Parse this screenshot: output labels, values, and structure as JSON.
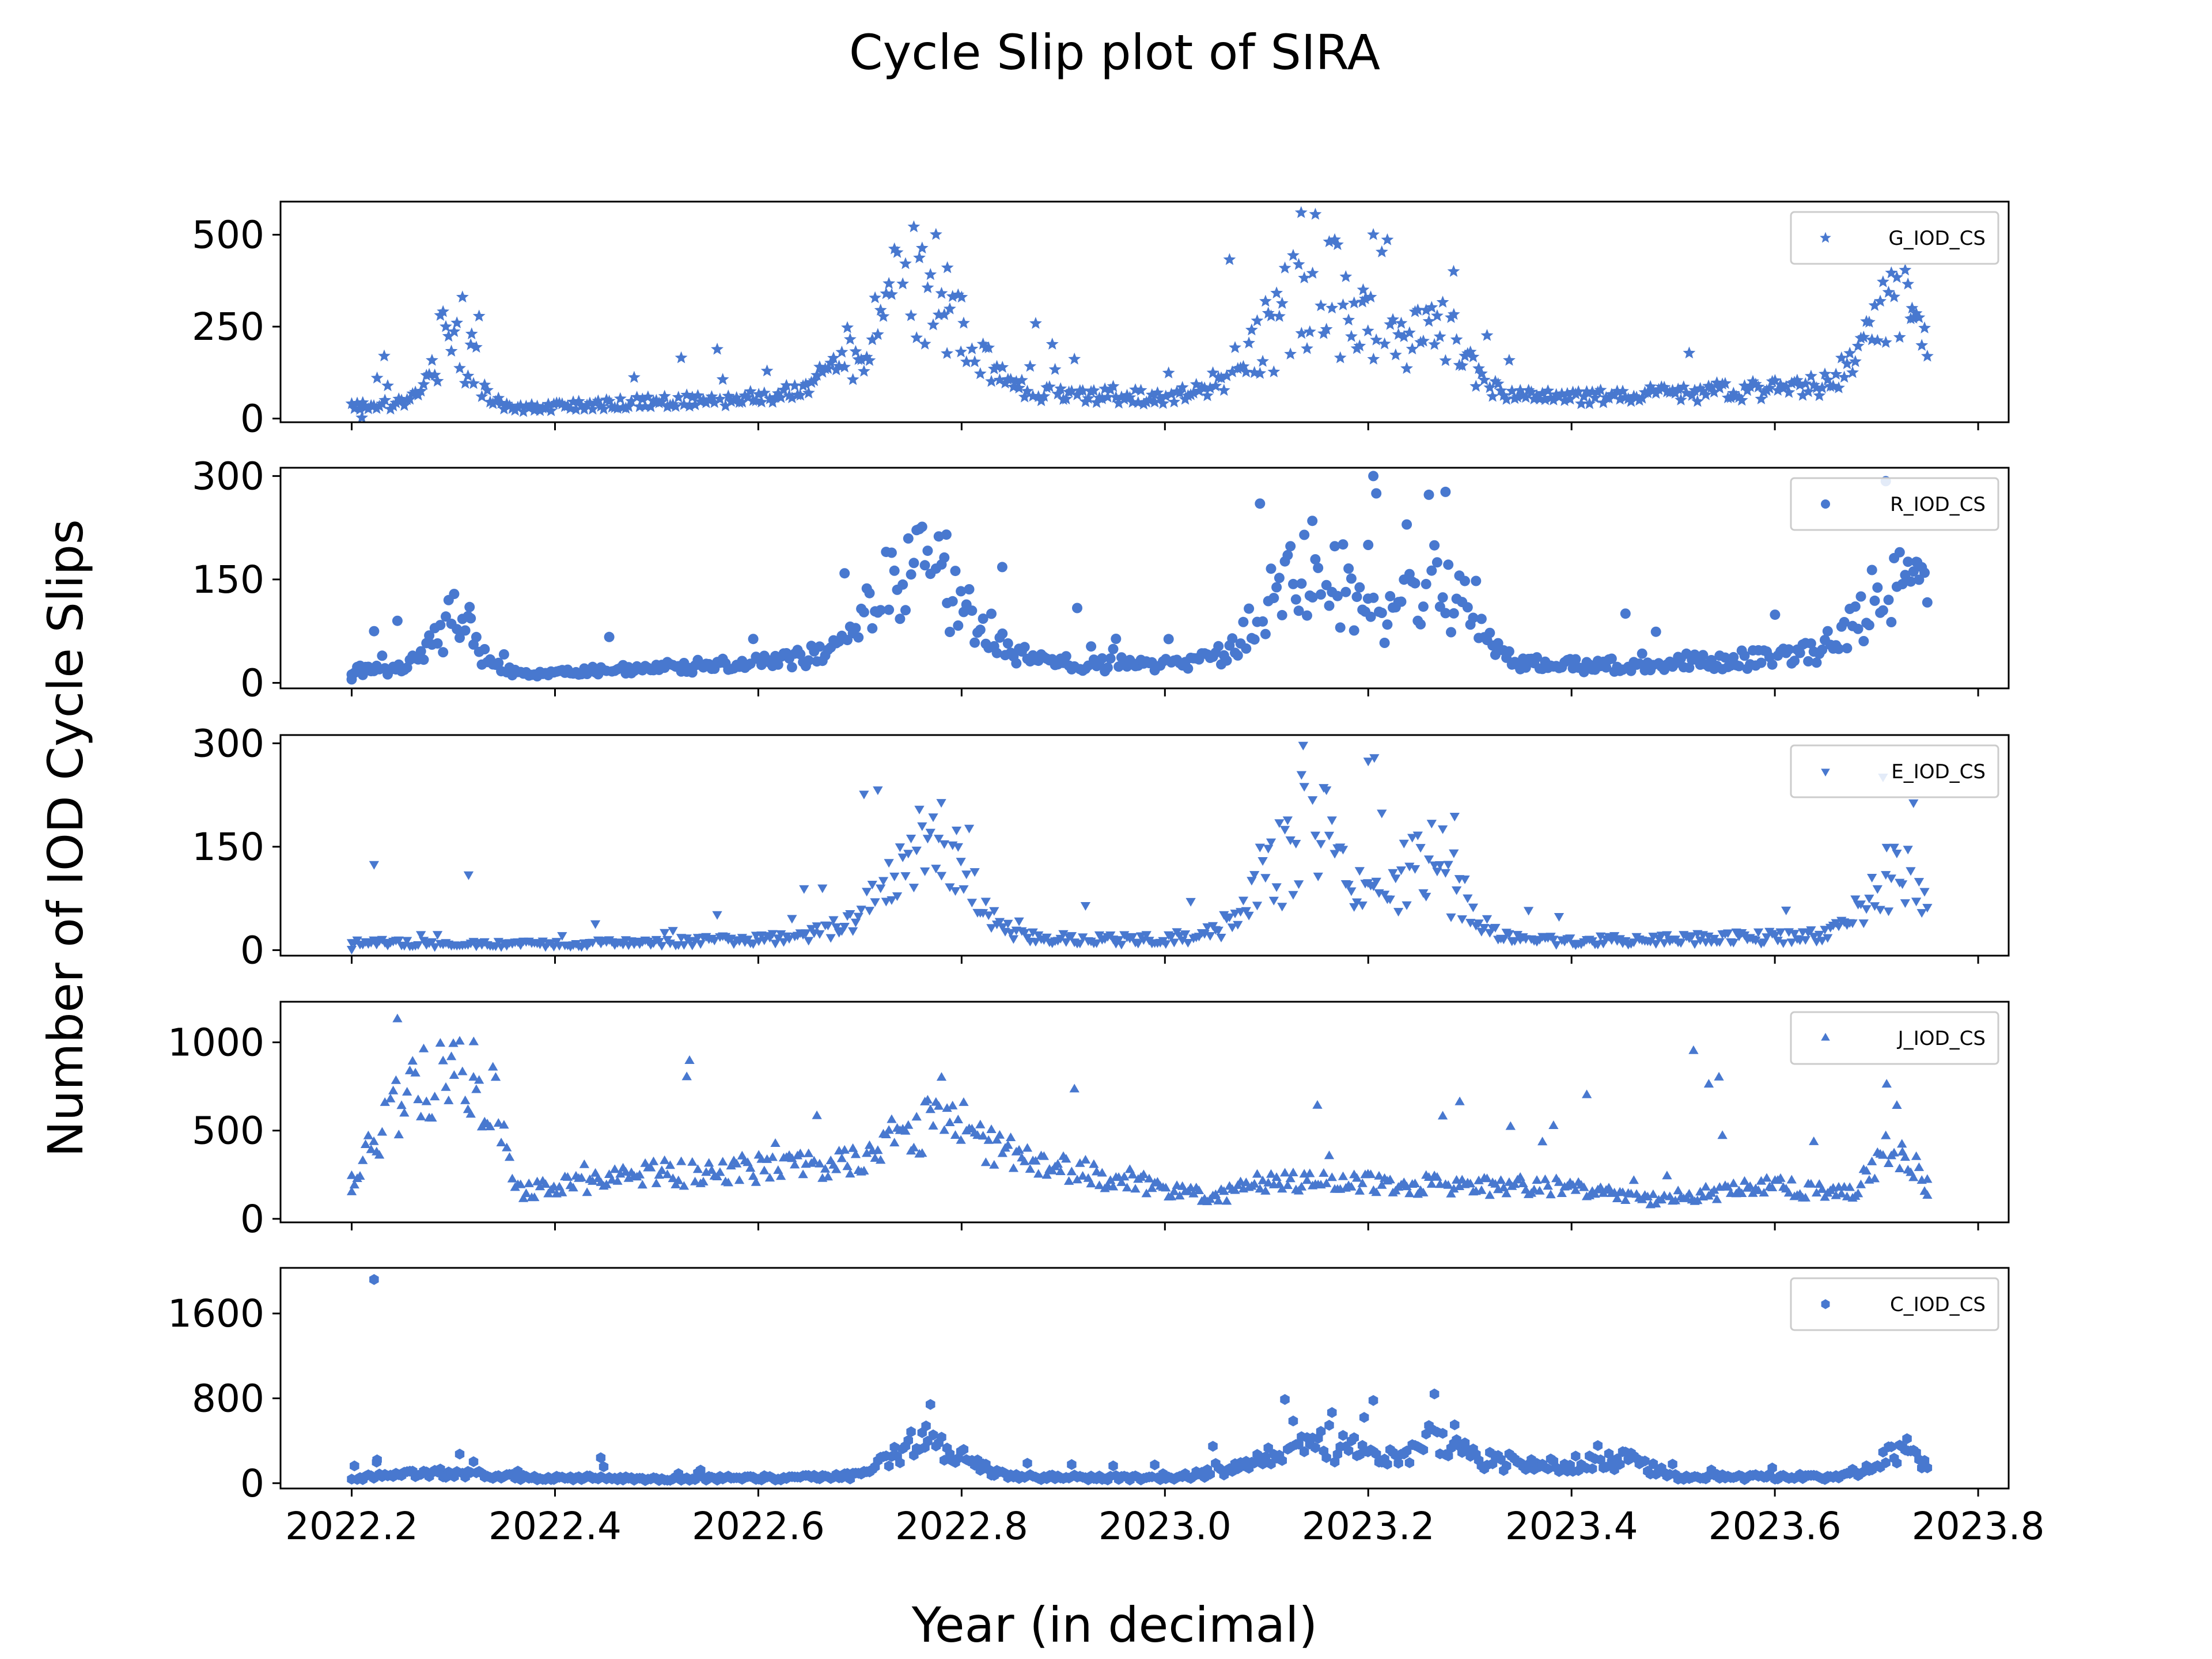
{
  "chart_data": {
    "type": "scatter",
    "title": "Cycle Slip plot of SIRA",
    "xlabel": "Year (in decimal)",
    "ylabel": "Number of IOD Cycle Slips",
    "xlim": [
      2022.13,
      2023.83
    ],
    "x_ticks": [
      2022.2,
      2022.4,
      2022.6,
      2022.8,
      2023.0,
      2023.2,
      2023.4,
      2023.6,
      2023.8
    ],
    "x_tick_labels": [
      "2022.2",
      "2022.4",
      "2022.6",
      "2022.8",
      "2023.0",
      "2023.2",
      "2023.4",
      "2023.6",
      "2023.8"
    ],
    "color": "#4878cf",
    "legend_position": "top-right",
    "grid": false,
    "x_sampling": {
      "start": 2022.2,
      "end": 2023.75,
      "count": 570
    },
    "panels": [
      {
        "name": "G_IOD_CS",
        "marker": "star",
        "ylim": [
          -10,
          590
        ],
        "y_ticks": [
          0,
          250,
          500
        ],
        "y_tick_labels": [
          "0",
          "250",
          "500"
        ],
        "baseline": [
          [
            2022.2,
            35
          ],
          [
            2022.3,
            40
          ],
          [
            2022.35,
            25
          ],
          [
            2022.45,
            40
          ],
          [
            2022.6,
            55
          ],
          [
            2022.7,
            85
          ],
          [
            2022.78,
            140
          ],
          [
            2022.85,
            70
          ],
          [
            2023.0,
            55
          ],
          [
            2023.1,
            60
          ],
          [
            2023.2,
            65
          ],
          [
            2023.3,
            60
          ],
          [
            2023.4,
            55
          ],
          [
            2023.6,
            80
          ],
          [
            2023.75,
            95
          ]
        ],
        "jitter": 0.35,
        "spike_prob": 0.06,
        "peaks": [
          [
            2022.3,
            150,
            0.02
          ],
          [
            2022.75,
            250,
            0.045
          ],
          [
            2023.15,
            300,
            0.05
          ],
          [
            2023.27,
            200,
            0.025
          ],
          [
            2023.72,
            200,
            0.03
          ]
        ],
        "extras": [
          [
            2022.21,
            2
          ],
          [
            2022.225,
            110
          ],
          [
            2022.232,
            170
          ],
          [
            2022.318,
            230
          ],
          [
            2022.786,
            410
          ],
          [
            2022.8,
            330
          ],
          [
            2023.134,
            560
          ],
          [
            2023.205,
            500
          ],
          [
            2023.284,
            400
          ],
          [
            2023.195,
            350
          ],
          [
            2023.735,
            300
          ]
        ]
      },
      {
        "name": "R_IOD_CS",
        "marker": "circle",
        "ylim": [
          -8,
          312
        ],
        "y_ticks": [
          0,
          150,
          300
        ],
        "y_tick_labels": [
          "0",
          "150",
          "300"
        ],
        "baseline": [
          [
            2022.2,
            18
          ],
          [
            2022.3,
            20
          ],
          [
            2022.4,
            14
          ],
          [
            2022.5,
            22
          ],
          [
            2022.6,
            28
          ],
          [
            2022.7,
            40
          ],
          [
            2022.78,
            60
          ],
          [
            2022.85,
            30
          ],
          [
            2023.0,
            25
          ],
          [
            2023.1,
            35
          ],
          [
            2023.2,
            30
          ],
          [
            2023.3,
            32
          ],
          [
            2023.4,
            25
          ],
          [
            2023.6,
            35
          ],
          [
            2023.75,
            50
          ]
        ],
        "jitter": 0.4,
        "spike_prob": 0.05,
        "peaks": [
          [
            2022.3,
            70,
            0.02
          ],
          [
            2022.76,
            110,
            0.045
          ],
          [
            2023.15,
            130,
            0.045
          ],
          [
            2023.27,
            110,
            0.03
          ],
          [
            2023.72,
            100,
            0.035
          ]
        ],
        "extras": [
          [
            2022.2,
            5
          ],
          [
            2022.222,
            75
          ],
          [
            2022.245,
            90
          ],
          [
            2022.316,
            110
          ],
          [
            2022.785,
            215
          ],
          [
            2022.84,
            168
          ],
          [
            2023.2,
            200
          ],
          [
            2023.205,
            300
          ],
          [
            2023.276,
            277
          ],
          [
            2023.145,
            235
          ],
          [
            2023.74,
            175
          ]
        ]
      },
      {
        "name": "E_IOD_CS",
        "marker": "triangle-down",
        "ylim": [
          -8,
          312
        ],
        "y_ticks": [
          0,
          150,
          300
        ],
        "y_tick_labels": [
          "0",
          "150",
          "300"
        ],
        "baseline": [
          [
            2022.2,
            12
          ],
          [
            2022.3,
            10
          ],
          [
            2022.4,
            10
          ],
          [
            2022.5,
            12
          ],
          [
            2022.6,
            18
          ],
          [
            2022.7,
            25
          ],
          [
            2022.78,
            35
          ],
          [
            2022.85,
            18
          ],
          [
            2023.0,
            16
          ],
          [
            2023.1,
            20
          ],
          [
            2023.2,
            20
          ],
          [
            2023.3,
            18
          ],
          [
            2023.4,
            14
          ],
          [
            2023.6,
            20
          ],
          [
            2023.75,
            25
          ]
        ],
        "jitter": 0.45,
        "spike_prob": 0.05,
        "peaks": [
          [
            2022.76,
            120,
            0.04
          ],
          [
            2023.14,
            150,
            0.04
          ],
          [
            2023.26,
            110,
            0.03
          ],
          [
            2023.72,
            80,
            0.03
          ]
        ],
        "extras": [
          [
            2022.2,
            2
          ],
          [
            2022.222,
            125
          ],
          [
            2022.315,
            110
          ],
          [
            2022.645,
            90
          ],
          [
            2022.78,
            215
          ],
          [
            2022.795,
            175
          ],
          [
            2023.136,
            298
          ],
          [
            2023.2,
            275
          ],
          [
            2023.206,
            280
          ],
          [
            2023.285,
            195
          ],
          [
            2023.71,
            150
          ]
        ]
      },
      {
        "name": "J_IOD_CS",
        "marker": "triangle-up",
        "ylim": [
          -20,
          1230
        ],
        "y_ticks": [
          0,
          500,
          1000
        ],
        "y_tick_labels": [
          "0",
          "500",
          "1000"
        ],
        "baseline": [
          [
            2022.2,
            200
          ],
          [
            2022.25,
            700
          ],
          [
            2022.3,
            800
          ],
          [
            2022.34,
            700
          ],
          [
            2022.36,
            150
          ],
          [
            2022.4,
            180
          ],
          [
            2022.5,
            250
          ],
          [
            2022.6,
            280
          ],
          [
            2022.7,
            300
          ],
          [
            2022.78,
            450
          ],
          [
            2022.85,
            330
          ],
          [
            2022.95,
            230
          ],
          [
            2023.05,
            120
          ],
          [
            2023.1,
            200
          ],
          [
            2023.2,
            200
          ],
          [
            2023.3,
            180
          ],
          [
            2023.4,
            180
          ],
          [
            2023.47,
            100
          ],
          [
            2023.55,
            150
          ],
          [
            2023.6,
            180
          ],
          [
            2023.68,
            130
          ],
          [
            2023.71,
            300
          ],
          [
            2023.75,
            160
          ]
        ],
        "jitter": 0.3,
        "spike_prob": 0.04,
        "peaks": [
          [
            2022.77,
            150,
            0.04
          ],
          [
            2023.72,
            150,
            0.02
          ]
        ],
        "extras": [
          [
            2022.2,
            150
          ],
          [
            2022.245,
            1130
          ],
          [
            2022.3,
            990
          ],
          [
            2022.32,
            1000
          ],
          [
            2023.15,
            640
          ],
          [
            2023.29,
            660
          ],
          [
            2023.34,
            520
          ],
          [
            2023.415,
            700
          ],
          [
            2023.52,
            950
          ],
          [
            2023.535,
            760
          ],
          [
            2023.545,
            800
          ],
          [
            2023.71,
            760
          ],
          [
            2023.725,
            420
          ],
          [
            2023.75,
            130
          ]
        ]
      },
      {
        "name": "C_IOD_CS",
        "marker": "hexagon",
        "ylim": [
          -50,
          2030
        ],
        "y_ticks": [
          0,
          800,
          1600
        ],
        "y_tick_labels": [
          "0",
          "800",
          "1600"
        ],
        "baseline": [
          [
            2022.2,
            50
          ],
          [
            2022.3,
            100
          ],
          [
            2022.35,
            60
          ],
          [
            2022.5,
            40
          ],
          [
            2022.7,
            60
          ],
          [
            2022.78,
            200
          ],
          [
            2022.85,
            60
          ],
          [
            2023.0,
            50
          ],
          [
            2023.1,
            150
          ],
          [
            2023.2,
            200
          ],
          [
            2023.3,
            200
          ],
          [
            2023.4,
            180
          ],
          [
            2023.46,
            220
          ],
          [
            2023.5,
            60
          ],
          [
            2023.65,
            60
          ],
          [
            2023.75,
            150
          ]
        ],
        "jitter": 0.45,
        "spike_prob": 0.05,
        "peaks": [
          [
            2022.76,
            200,
            0.03
          ],
          [
            2023.15,
            200,
            0.04
          ],
          [
            2023.27,
            200,
            0.02
          ],
          [
            2023.72,
            150,
            0.02
          ]
        ],
        "extras": [
          [
            2022.222,
            1920
          ],
          [
            2022.225,
            220
          ],
          [
            2022.445,
            240
          ],
          [
            2022.765,
            540
          ],
          [
            2023.205,
            780
          ],
          [
            2023.196,
            620
          ],
          [
            2023.285,
            550
          ],
          [
            2023.73,
            420
          ]
        ]
      }
    ]
  }
}
